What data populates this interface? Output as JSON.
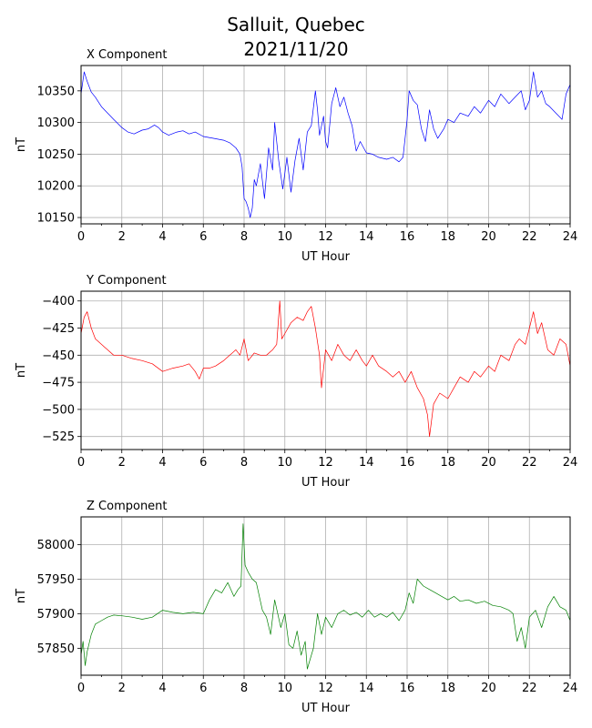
{
  "title": "Salluit, Quebec",
  "subtitle": "2021/11/20",
  "chart_data": [
    {
      "type": "line",
      "title": "X Component",
      "xlabel": "UT Hour",
      "ylabel": "nT",
      "xlim": [
        0,
        24
      ],
      "ylim": [
        10140,
        10390
      ],
      "xticks": [
        0,
        2,
        4,
        6,
        8,
        10,
        12,
        14,
        16,
        18,
        20,
        22,
        24
      ],
      "yticks": [
        10150,
        10200,
        10250,
        10300,
        10350
      ],
      "grid": true,
      "color": "#0000ff",
      "x": [
        0.0,
        0.15,
        0.3,
        0.5,
        0.7,
        1.0,
        1.3,
        1.6,
        2.0,
        2.3,
        2.6,
        3.0,
        3.3,
        3.6,
        3.8,
        4.0,
        4.3,
        4.7,
        5.0,
        5.3,
        5.6,
        6.0,
        6.5,
        7.0,
        7.3,
        7.6,
        7.8,
        7.9,
        8.0,
        8.1,
        8.2,
        8.3,
        8.4,
        8.5,
        8.6,
        8.8,
        9.0,
        9.2,
        9.4,
        9.5,
        9.7,
        9.9,
        10.1,
        10.3,
        10.5,
        10.7,
        10.9,
        11.1,
        11.3,
        11.5,
        11.6,
        11.7,
        11.9,
        12.0,
        12.1,
        12.3,
        12.5,
        12.7,
        12.9,
        13.1,
        13.3,
        13.5,
        13.7,
        14.0,
        14.3,
        14.6,
        15.0,
        15.3,
        15.6,
        15.8,
        16.0,
        16.1,
        16.3,
        16.5,
        16.7,
        16.9,
        17.1,
        17.3,
        17.5,
        17.8,
        18.0,
        18.3,
        18.6,
        19.0,
        19.3,
        19.6,
        20.0,
        20.3,
        20.6,
        21.0,
        21.3,
        21.6,
        21.8,
        22.0,
        22.2,
        22.4,
        22.6,
        22.8,
        23.0,
        23.3,
        23.6,
        23.8,
        24.0
      ],
      "y": [
        10345,
        10380,
        10365,
        10348,
        10340,
        10325,
        10315,
        10305,
        10292,
        10285,
        10282,
        10288,
        10290,
        10296,
        10292,
        10285,
        10280,
        10285,
        10287,
        10282,
        10285,
        10278,
        10275,
        10272,
        10268,
        10260,
        10250,
        10230,
        10180,
        10175,
        10165,
        10150,
        10165,
        10210,
        10200,
        10235,
        10180,
        10260,
        10225,
        10300,
        10240,
        10195,
        10245,
        10190,
        10240,
        10275,
        10225,
        10285,
        10295,
        10350,
        10320,
        10280,
        10310,
        10270,
        10260,
        10330,
        10355,
        10325,
        10340,
        10315,
        10295,
        10255,
        10270,
        10252,
        10250,
        10245,
        10242,
        10245,
        10238,
        10245,
        10305,
        10350,
        10335,
        10328,
        10290,
        10270,
        10320,
        10290,
        10275,
        10290,
        10305,
        10300,
        10315,
        10310,
        10325,
        10315,
        10335,
        10325,
        10345,
        10330,
        10340,
        10350,
        10320,
        10335,
        10380,
        10340,
        10350,
        10330,
        10325,
        10315,
        10305,
        10345,
        10360
      ]
    },
    {
      "type": "line",
      "title": "Y Component",
      "xlabel": "UT Hour",
      "ylabel": "nT",
      "xlim": [
        0,
        24
      ],
      "ylim": [
        -537,
        -391
      ],
      "xticks": [
        0,
        2,
        4,
        6,
        8,
        10,
        12,
        14,
        16,
        18,
        20,
        22,
        24
      ],
      "yticks": [
        -400,
        -425,
        -450,
        -475,
        -500,
        -525
      ],
      "grid": true,
      "color": "#ff0000",
      "x": [
        0.0,
        0.15,
        0.3,
        0.5,
        0.7,
        1.0,
        1.3,
        1.6,
        2.0,
        2.5,
        3.0,
        3.5,
        4.0,
        4.5,
        5.0,
        5.3,
        5.6,
        5.8,
        6.0,
        6.3,
        6.6,
        7.0,
        7.3,
        7.6,
        7.8,
        8.0,
        8.2,
        8.5,
        8.8,
        9.1,
        9.4,
        9.6,
        9.75,
        9.85,
        10.0,
        10.3,
        10.6,
        10.9,
        11.1,
        11.3,
        11.5,
        11.7,
        11.8,
        12.0,
        12.3,
        12.6,
        12.9,
        13.2,
        13.5,
        13.8,
        14.0,
        14.3,
        14.6,
        15.0,
        15.3,
        15.6,
        15.9,
        16.2,
        16.5,
        16.8,
        17.0,
        17.1,
        17.3,
        17.6,
        18.0,
        18.3,
        18.6,
        19.0,
        19.3,
        19.6,
        20.0,
        20.3,
        20.6,
        21.0,
        21.3,
        21.5,
        21.8,
        22.0,
        22.2,
        22.4,
        22.6,
        22.9,
        23.2,
        23.5,
        23.8,
        24.0
      ],
      "y": [
        -430,
        -415,
        -410,
        -425,
        -435,
        -440,
        -445,
        -450,
        -450,
        -453,
        -455,
        -458,
        -465,
        -462,
        -460,
        -458,
        -465,
        -472,
        -462,
        -462,
        -460,
        -455,
        -450,
        -445,
        -450,
        -435,
        -455,
        -448,
        -450,
        -450,
        -445,
        -440,
        -400,
        -435,
        -430,
        -420,
        -415,
        -418,
        -410,
        -405,
        -425,
        -450,
        -480,
        -445,
        -455,
        -440,
        -450,
        -455,
        -445,
        -455,
        -460,
        -450,
        -460,
        -465,
        -470,
        -465,
        -475,
        -465,
        -480,
        -490,
        -505,
        -525,
        -495,
        -485,
        -490,
        -480,
        -470,
        -475,
        -465,
        -470,
        -460,
        -465,
        -450,
        -455,
        -440,
        -435,
        -440,
        -425,
        -410,
        -430,
        -420,
        -445,
        -450,
        -435,
        -440,
        -460
      ]
    },
    {
      "type": "line",
      "title": "Z Component",
      "xlabel": "UT Hour",
      "ylabel": "nT",
      "xlim": [
        0,
        24
      ],
      "ylim": [
        57811,
        58040
      ],
      "xticks": [
        0,
        2,
        4,
        6,
        8,
        10,
        12,
        14,
        16,
        18,
        20,
        22,
        24
      ],
      "yticks": [
        57850,
        57900,
        57950,
        58000
      ],
      "grid": true,
      "color": "#008000",
      "x": [
        0.0,
        0.1,
        0.2,
        0.3,
        0.5,
        0.7,
        1.0,
        1.3,
        1.6,
        2.0,
        2.5,
        3.0,
        3.5,
        4.0,
        4.5,
        5.0,
        5.5,
        6.0,
        6.3,
        6.6,
        6.9,
        7.2,
        7.5,
        7.7,
        7.85,
        7.95,
        8.05,
        8.2,
        8.4,
        8.6,
        8.9,
        9.1,
        9.3,
        9.5,
        9.8,
        10.0,
        10.2,
        10.4,
        10.6,
        10.8,
        11.0,
        11.1,
        11.2,
        11.4,
        11.6,
        11.8,
        12.0,
        12.3,
        12.6,
        12.9,
        13.2,
        13.5,
        13.8,
        14.1,
        14.4,
        14.7,
        15.0,
        15.3,
        15.6,
        15.9,
        16.1,
        16.3,
        16.5,
        16.8,
        17.1,
        17.4,
        17.7,
        18.0,
        18.3,
        18.6,
        19.0,
        19.4,
        19.8,
        20.2,
        20.6,
        21.0,
        21.2,
        21.4,
        21.6,
        21.8,
        22.0,
        22.3,
        22.6,
        22.9,
        23.2,
        23.5,
        23.8,
        24.0
      ],
      "y": [
        57840,
        57860,
        57825,
        57845,
        57870,
        57885,
        57890,
        57895,
        57898,
        57897,
        57895,
        57892,
        57895,
        57905,
        57902,
        57900,
        57902,
        57900,
        57920,
        57935,
        57930,
        57945,
        57925,
        57935,
        57940,
        58030,
        57970,
        57960,
        57950,
        57945,
        57905,
        57895,
        57870,
        57920,
        57880,
        57900,
        57855,
        57850,
        57875,
        57840,
        57860,
        57820,
        57830,
        57850,
        57900,
        57870,
        57895,
        57880,
        57900,
        57905,
        57898,
        57902,
        57895,
        57905,
        57895,
        57900,
        57895,
        57902,
        57890,
        57905,
        57930,
        57915,
        57950,
        57940,
        57935,
        57930,
        57925,
        57920,
        57925,
        57918,
        57920,
        57915,
        57918,
        57912,
        57910,
        57905,
        57900,
        57860,
        57880,
        57850,
        57895,
        57905,
        57880,
        57910,
        57925,
        57910,
        57905,
        57890
      ]
    }
  ]
}
